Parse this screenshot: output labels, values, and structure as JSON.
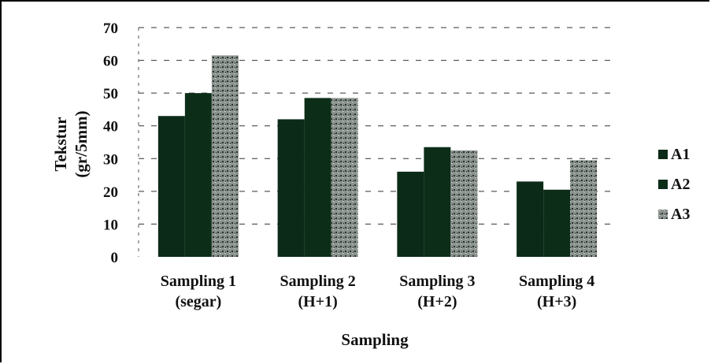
{
  "chart_data": {
    "type": "bar",
    "categories": [
      [
        "Sampling 1",
        "(segar)"
      ],
      [
        "Sampling 2",
        "(H+1)"
      ],
      [
        "Sampling 3",
        "(H+2)"
      ],
      [
        "Sampling 4",
        "(H+3)"
      ]
    ],
    "series": [
      {
        "name": "A1",
        "values": [
          43,
          42,
          26,
          23
        ],
        "color": "#0b2a17"
      },
      {
        "name": "A2",
        "values": [
          50,
          48.5,
          33.5,
          20.5
        ],
        "color": "#0c2e19"
      },
      {
        "name": "A3",
        "values": [
          61.5,
          48.5,
          32.5,
          29.5
        ],
        "color": "#6b7470"
      }
    ],
    "xlabel": "Sampling",
    "ylabel": [
      "Tekstur",
      "(gr/5mm)"
    ],
    "ylim": [
      0,
      70
    ],
    "yticks": [
      0,
      10,
      20,
      30,
      40,
      50,
      60,
      70
    ],
    "grid": true,
    "legend_position": "right"
  }
}
